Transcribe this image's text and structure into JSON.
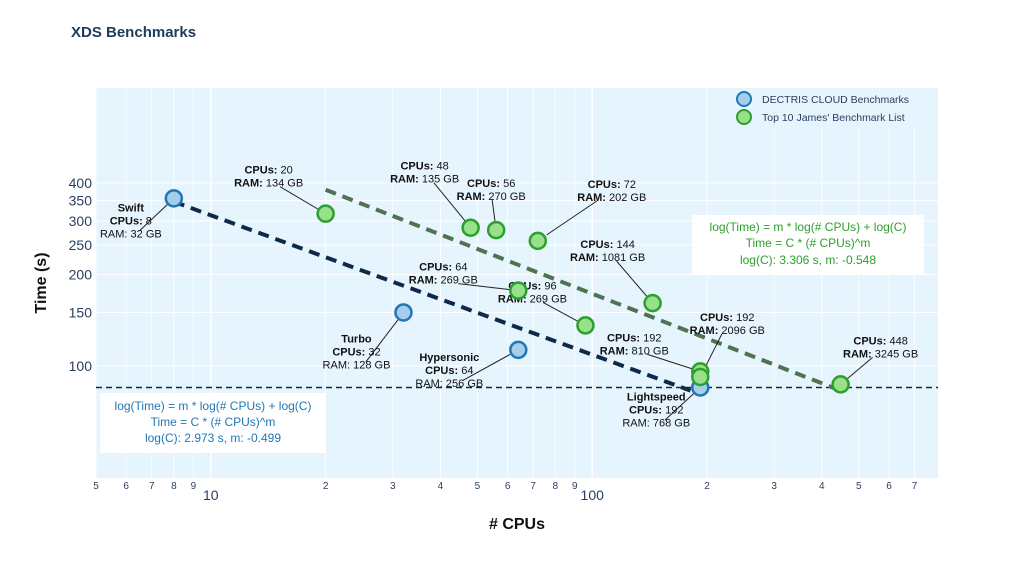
{
  "title": "XDS Benchmarks",
  "chart_data": {
    "type": "scatter",
    "title": "XDS Benchmarks",
    "xlabel": "# CPUs",
    "ylabel": "Time (s)",
    "x_scale": "log",
    "y_scale": "log",
    "xlim": [
      5,
      7.4
    ],
    "ylim": [
      83,
      400
    ],
    "grid": true,
    "legend_position": "top-right",
    "x_ticks": [
      "5",
      "6",
      "7",
      "8",
      "9",
      "10",
      "2",
      "3",
      "4",
      "5",
      "6",
      "7",
      "8",
      "9",
      "100",
      "2",
      "3",
      "4",
      "5",
      "6",
      "7"
    ],
    "y_ticks": [
      "100",
      "150",
      "200",
      "250",
      "300",
      "350",
      "400"
    ],
    "series": [
      {
        "name": "DECTRIS CLOUD Benchmarks",
        "color": "#1f77b4",
        "fill": "#a6cdea",
        "points": [
          {
            "x": 8,
            "y": 356,
            "label_name": "Swift",
            "label_cpus": "CPUs: 8",
            "label_ram": "RAM: 32 GB"
          },
          {
            "x": 32,
            "y": 150,
            "label_name": "Turbo",
            "label_cpus": "CPUs: 32",
            "label_ram": "RAM: 128 GB"
          },
          {
            "x": 64,
            "y": 113,
            "label_name": "Hypersonic",
            "label_cpus": "CPUs: 64",
            "label_ram": "RAM: 256 GB"
          },
          {
            "x": 192,
            "y": 85,
            "label_name": "Lightspeed",
            "label_cpus": "CPUs: 192",
            "label_ram": "RAM: 768 GB"
          }
        ]
      },
      {
        "name": "Top 10 James' Benchmark List",
        "color": "#2ca02c",
        "fill": "#98e08a",
        "points": [
          {
            "x": 20,
            "y": 317,
            "label_cpus": "CPUs: 20",
            "label_ram": "RAM: 134 GB"
          },
          {
            "x": 48,
            "y": 285,
            "label_cpus": "CPUs: 48",
            "label_ram": "RAM: 135 GB"
          },
          {
            "x": 56,
            "y": 280,
            "label_cpus": "CPUs: 56",
            "label_ram": "RAM: 270 GB"
          },
          {
            "x": 72,
            "y": 258,
            "label_cpus": "CPUs: 72",
            "label_ram": "RAM: 202 GB"
          },
          {
            "x": 144,
            "y": 161,
            "label_cpus": "CPUs: 144",
            "label_ram": "RAM: 1081 GB"
          },
          {
            "x": 64,
            "y": 177,
            "label_cpus": "CPUs: 64",
            "label_ram": "RAM: 269 GB"
          },
          {
            "x": 96,
            "y": 136,
            "label_cpus": "CPUs: 96",
            "label_ram": "RAM: 269 GB"
          },
          {
            "x": 192,
            "y": 96,
            "label_cpus": "CPUs: 192",
            "label_ram": "RAM: 810 GB"
          },
          {
            "x": 192,
            "y": 92,
            "label_cpus": "CPUs: 192",
            "label_ram": "RAM: 2096 GB"
          },
          {
            "x": 448,
            "y": 87,
            "label_cpus": "CPUs: 448",
            "label_ram": "RAM: 3245 GB"
          }
        ]
      }
    ],
    "fit_lines": [
      {
        "series": "DECTRIS CLOUD Benchmarks",
        "color": "#0d2a4a",
        "x": [
          8,
          181
        ],
        "y": [
          347,
          83
        ],
        "text": [
          "log(Time) = m * log(# CPUs) + log(C)",
          "Time = C * (# CPUs)^m",
          "log(C): 2.973 s, m: -0.499"
        ]
      },
      {
        "series": "Top 10 James' Benchmark List",
        "color": "#4d7350",
        "x": [
          20,
          448
        ],
        "y": [
          380,
          83
        ],
        "text": [
          "log(Time) = m * log(# CPUs) + log(C)",
          "Time = C * (# CPUs)^m",
          "log(C): 3.306 s, m: -0.548"
        ]
      }
    ],
    "hline": {
      "y": 85,
      "color": "#0d2a4a"
    }
  }
}
